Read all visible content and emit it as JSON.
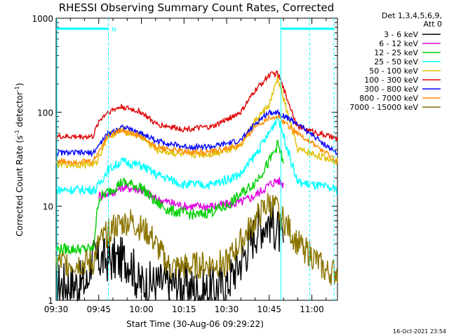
{
  "chart_data": {
    "type": "line",
    "title": "RHESSI Observing Summary Count Rates, Corrected",
    "xlabel": "Start Time (30-Aug-06 09:29:22)",
    "ylabel_parts": [
      "Corrected Count Rate (s",
      "-1",
      " detector",
      "-1",
      ")"
    ],
    "yscale": "log",
    "ylim": [
      1,
      1000
    ],
    "xlim_minutes": [
      570,
      669
    ],
    "x_ticks": [
      "09:30",
      "09:45",
      "10:00",
      "10:15",
      "10:30",
      "10:45",
      "11:00"
    ],
    "y_ticks": [
      "1",
      "10",
      "100",
      "1000"
    ],
    "legend_header": [
      "Det 1,3,4,5,6,9,",
      "Att 0"
    ],
    "legend_placement": "right",
    "timestamp": "16-Oct-2021 23:54",
    "annotations": {
      "night_marker": "N",
      "dashed_lines_minutes": [
        588.4,
        659.2,
        667.8
      ],
      "solid_lines_minutes": [
        570.3,
        649.1
      ]
    },
    "series": [
      {
        "name": "3 - 6 keV",
        "color": "#000000",
        "x": [
          570,
          581,
          582,
          596,
          599,
          615,
          621,
          630,
          636,
          641,
          645,
          648,
          650
        ],
        "y": [
          1.5,
          1.5,
          2.7,
          2.7,
          1.5,
          1.5,
          1.2,
          1.5,
          3.0,
          6.0,
          7.0,
          5.5,
          4.0
        ]
      },
      {
        "name": "6 - 12 keV",
        "color": "#e000e0",
        "x": [
          585,
          590,
          593,
          600,
          605,
          615,
          625,
          635,
          640,
          645,
          648,
          650
        ],
        "y": [
          13,
          14,
          16,
          15,
          12,
          10,
          10,
          11,
          13,
          17,
          19,
          17
        ]
      },
      {
        "name": "12 - 25 keV",
        "color": "#00d000",
        "x": [
          570,
          583,
          585,
          588,
          593,
          600,
          605,
          610,
          620,
          630,
          640,
          645,
          648,
          650
        ],
        "y": [
          3.5,
          3.5,
          12,
          14,
          18,
          16,
          11,
          9,
          8,
          10,
          18,
          30,
          45,
          30
        ]
      },
      {
        "name": "25 - 50 keV",
        "color": "#00ffff",
        "x": [
          570,
          584,
          588,
          593,
          600,
          605,
          615,
          625,
          635,
          640,
          645,
          648,
          655,
          669
        ],
        "y": [
          15,
          15,
          24,
          30,
          27,
          22,
          17,
          17,
          22,
          35,
          60,
          90,
          18,
          15
        ]
      },
      {
        "name": "50 - 100 keV",
        "color": "#e0c000",
        "x": [
          570,
          584,
          588,
          593,
          600,
          605,
          615,
          625,
          635,
          640,
          645,
          648,
          655,
          669
        ],
        "y": [
          28,
          28,
          55,
          65,
          55,
          40,
          35,
          36,
          45,
          80,
          120,
          230,
          40,
          30
        ]
      },
      {
        "name": "100 - 300 keV",
        "color": "#e00000",
        "x": [
          570,
          583,
          585,
          588,
          593,
          600,
          605,
          615,
          625,
          635,
          640,
          645,
          648,
          655,
          669
        ],
        "y": [
          55,
          55,
          80,
          100,
          115,
          100,
          75,
          66,
          70,
          100,
          170,
          250,
          260,
          70,
          52
        ]
      },
      {
        "name": "300 - 800 keV",
        "color": "#0000ff",
        "x": [
          570,
          583,
          588,
          593,
          600,
          605,
          615,
          625,
          635,
          640,
          645,
          648,
          655,
          669
        ],
        "y": [
          37,
          37,
          58,
          70,
          60,
          50,
          43,
          43,
          50,
          75,
          100,
          100,
          75,
          36
        ]
      },
      {
        "name": "800 - 7000 keV",
        "color": "#ff8c00",
        "x": [
          570,
          583,
          588,
          593,
          600,
          605,
          615,
          625,
          635,
          640,
          645,
          648,
          655,
          669
        ],
        "y": [
          30,
          30,
          55,
          65,
          55,
          43,
          38,
          38,
          45,
          70,
          88,
          90,
          60,
          30
        ]
      },
      {
        "name": "7000 - 15000 keV",
        "color": "#8b7500",
        "x": [
          570,
          583,
          585,
          590,
          596,
          603,
          610,
          630,
          640,
          645,
          648,
          655,
          660,
          665,
          669
        ],
        "y": [
          2.5,
          2.5,
          4,
          6,
          7,
          5,
          2.2,
          2.5,
          7,
          11,
          9,
          4,
          3,
          2,
          2
        ]
      }
    ]
  }
}
